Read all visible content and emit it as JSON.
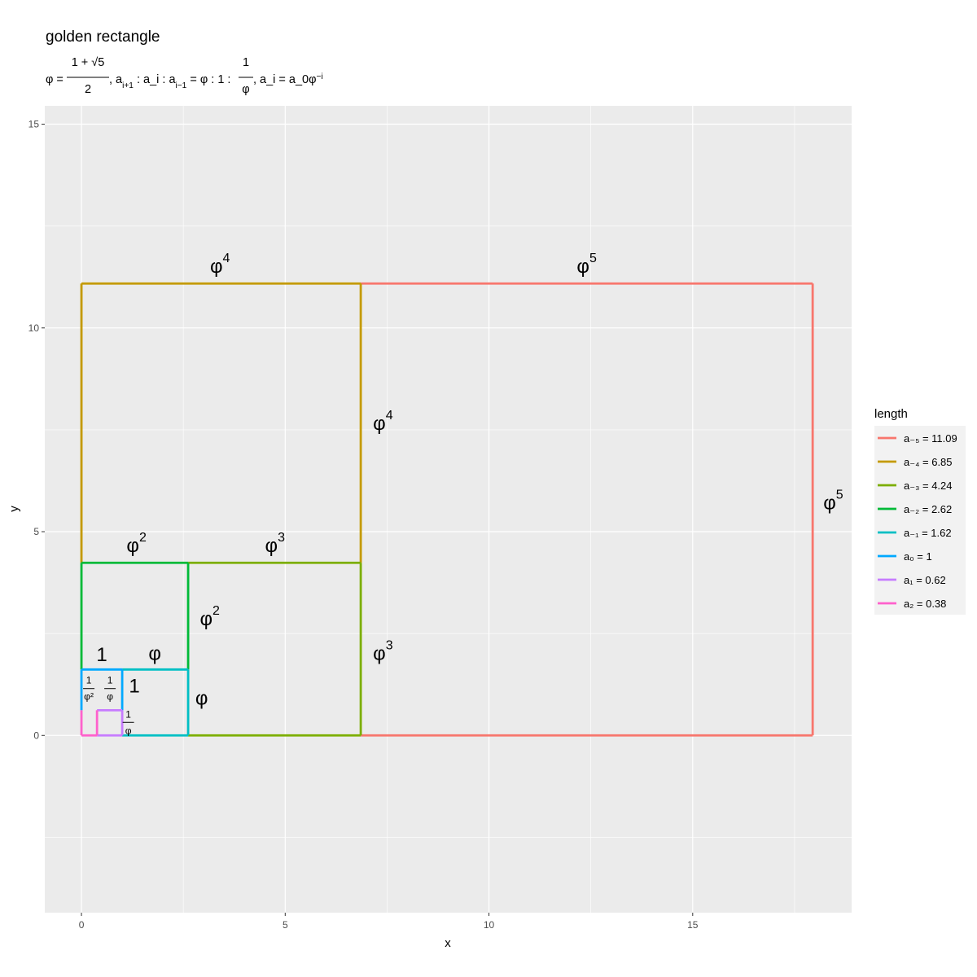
{
  "chart_data": {
    "type": "line",
    "title": "golden rectangle",
    "subtitle": {
      "phi_def": "φ =",
      "phi_num": "1 + √5",
      "phi_den": "2",
      "ratio_text": ", a_{i+1} : a_i : a_{i−1} = φ : 1 :",
      "ratio_num": "1",
      "ratio_den": "φ",
      "formula_text": ", a_i = a_0φ^{−i}"
    },
    "xlabel": "x",
    "ylabel": "y",
    "xlim": [
      -0.9,
      18.9
    ],
    "ylim": [
      -4.35,
      15.45
    ],
    "x_ticks": [
      0,
      5,
      10,
      15
    ],
    "y_ticks": [
      0,
      5,
      10,
      15
    ],
    "grid": true,
    "legend": {
      "title": "length",
      "position": "right"
    },
    "series": [
      {
        "name": "a₋₅ = 11.09",
        "value": 11.09,
        "color": "#F8766D",
        "segments": [
          [
            6.854,
            0,
            17.944,
            0
          ],
          [
            17.944,
            0,
            17.944,
            11.09
          ],
          [
            17.944,
            11.09,
            6.854,
            11.09
          ]
        ]
      },
      {
        "name": "a₋₄ = 6.85",
        "value": 6.85,
        "color": "#C49A00",
        "segments": [
          [
            0,
            4.236,
            0,
            11.09
          ],
          [
            0,
            11.09,
            6.854,
            11.09
          ],
          [
            6.854,
            11.09,
            6.854,
            4.236
          ]
        ]
      },
      {
        "name": "a₋₃ = 4.24",
        "value": 4.24,
        "color": "#7CAE00",
        "segments": [
          [
            2.618,
            0,
            6.854,
            0
          ],
          [
            6.854,
            0,
            6.854,
            4.236
          ],
          [
            6.854,
            4.236,
            2.618,
            4.236
          ]
        ]
      },
      {
        "name": "a₋₂ = 2.62",
        "value": 2.62,
        "color": "#00BA38",
        "segments": [
          [
            0,
            1.618,
            0,
            4.236
          ],
          [
            0,
            4.236,
            2.618,
            4.236
          ],
          [
            2.618,
            4.236,
            2.618,
            1.618
          ]
        ]
      },
      {
        "name": "a₋₁ = 1.62",
        "value": 1.62,
        "color": "#00BFC4",
        "segments": [
          [
            1,
            0,
            2.618,
            0
          ],
          [
            2.618,
            0,
            2.618,
            1.618
          ],
          [
            2.618,
            1.618,
            1,
            1.618
          ]
        ]
      },
      {
        "name": "a₀ = 1",
        "value": 1,
        "color": "#00A9FF",
        "segments": [
          [
            0,
            0.618,
            0,
            1.618
          ],
          [
            0,
            1.618,
            1,
            1.618
          ],
          [
            1,
            1.618,
            1,
            0.618
          ]
        ]
      },
      {
        "name": "a₁ = 0.62",
        "value": 0.62,
        "color": "#C77CFF",
        "segments": [
          [
            0.382,
            0,
            1,
            0
          ],
          [
            1,
            0,
            1,
            0.618
          ],
          [
            1,
            0.618,
            0.382,
            0.618
          ]
        ]
      },
      {
        "name": "a₂ = 0.38",
        "value": 0.38,
        "color": "#FF61CC",
        "segments": [
          [
            0,
            0,
            0,
            0.618
          ],
          [
            0,
            0,
            0.382,
            0
          ],
          [
            0.382,
            0,
            0.382,
            0.618
          ]
        ]
      }
    ],
    "annotations": [
      {
        "base": "φ",
        "sup": "5",
        "x": 12.4,
        "y": 11.35
      },
      {
        "base": "φ",
        "sup": "5",
        "x": 18.45,
        "y": 5.55
      },
      {
        "base": "φ",
        "sup": "4",
        "x": 3.4,
        "y": 11.35
      },
      {
        "base": "φ",
        "sup": "4",
        "x": 7.4,
        "y": 7.5
      },
      {
        "base": "φ",
        "sup": "3",
        "x": 4.75,
        "y": 4.5
      },
      {
        "base": "φ",
        "sup": "3",
        "x": 7.4,
        "y": 1.85
      },
      {
        "base": "φ",
        "sup": "2",
        "x": 1.35,
        "y": 4.5
      },
      {
        "base": "φ",
        "sup": "2",
        "x": 3.15,
        "y": 2.7
      },
      {
        "base": "φ",
        "sup": "",
        "x": 1.8,
        "y": 1.85
      },
      {
        "base": "φ",
        "sup": "",
        "x": 2.95,
        "y": 0.75
      },
      {
        "base": "1",
        "sup": "",
        "x": 0.5,
        "y": 1.82
      },
      {
        "base": "1",
        "sup": "",
        "x": 1.3,
        "y": 1.05
      }
    ],
    "fractions": [
      {
        "num": "1",
        "den": "φ²",
        "x": 0.18,
        "y": 1.15
      },
      {
        "num": "1",
        "den": "φ",
        "x": 0.7,
        "y": 1.15
      },
      {
        "num": "1",
        "den": "φ",
        "x": 1.15,
        "y": 0.32
      }
    ]
  }
}
